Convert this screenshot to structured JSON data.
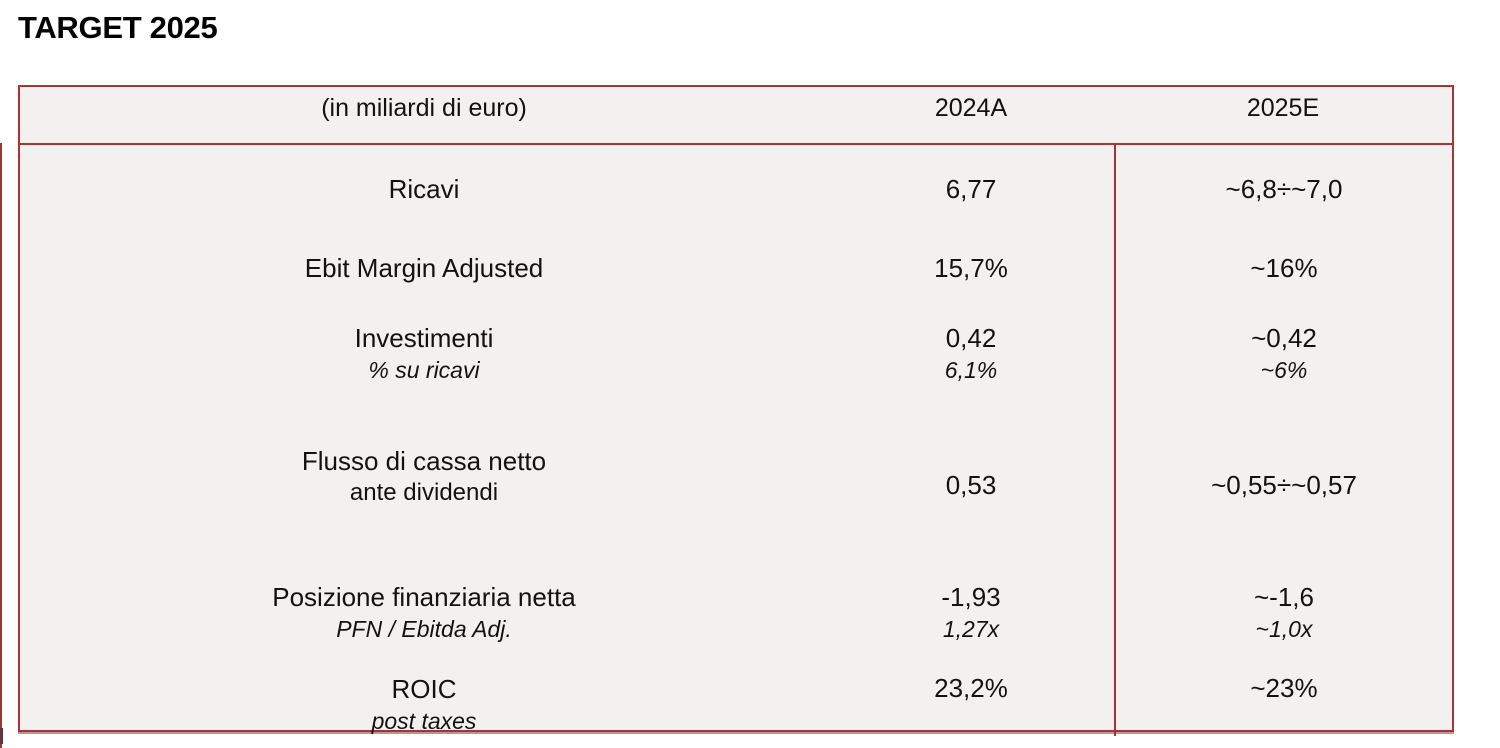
{
  "page": {
    "title": "TARGET 2025"
  },
  "colors": {
    "border_red": "#a53535",
    "cell_background": "#f2f1ef",
    "text": "#121212"
  },
  "table": {
    "header": {
      "unit_label": "(in miliardi di euro)",
      "col_2024": "2024A",
      "col_2025": "2025E"
    },
    "rows": [
      {
        "label": "Ricavi",
        "sub": "",
        "sub_italic": true,
        "v2024": "6,77",
        "v2024_sub": "",
        "v2025": "~6,8÷~7,0",
        "v2025_sub": ""
      },
      {
        "label": "Ebit Margin Adjusted",
        "sub": "",
        "sub_italic": true,
        "v2024": "15,7%",
        "v2024_sub": "",
        "v2025": "~16%",
        "v2025_sub": ""
      },
      {
        "label": "Investimenti",
        "sub": "% su ricavi",
        "sub_italic": true,
        "v2024": "0,42",
        "v2024_sub": "6,1%",
        "v2025": "~0,42",
        "v2025_sub": "~6%"
      },
      {
        "label": "Flusso di cassa netto",
        "sub": "ante dividendi",
        "sub_italic": false,
        "v2024": "0,53",
        "v2024_sub": "",
        "v2025": "~0,55÷~0,57",
        "v2025_sub": ""
      },
      {
        "label": "Posizione finanziaria netta",
        "sub": "PFN / Ebitda Adj.",
        "sub_italic": true,
        "v2024": "-1,93",
        "v2024_sub": "1,27x",
        "v2025": "~-1,6",
        "v2025_sub": "~1,0x"
      },
      {
        "label": "ROIC",
        "sub": "post taxes",
        "sub_italic": true,
        "v2024": "23,2%",
        "v2024_sub": "",
        "v2025": "~23%",
        "v2025_sub": ""
      }
    ]
  }
}
